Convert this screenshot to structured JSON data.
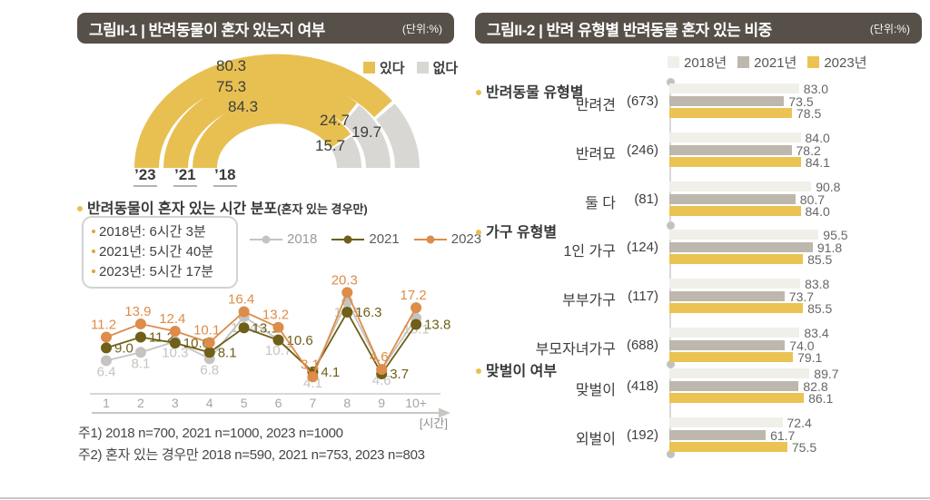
{
  "left_panel": {
    "header": {
      "title": "그림II-1 | 반려동물이 혼자 있는지 여부",
      "unit": "(단위:%)"
    },
    "section_title": "반려동물이 혼자 있는 시간 분포",
    "section_title_note": "(혼자 있는 경우만)",
    "avg_lines": [
      "2018년: 6시간 3분",
      "2021년: 5시간 40분",
      "2023년: 5시간 17분"
    ],
    "footnotes": [
      "주1) 2018 n=700, 2021 n=1000, 2023 n=1000",
      "주2) 혼자 있는 경우만 2018 n=590, 2021 n=753, 2023 n=803"
    ]
  },
  "right_panel": {
    "header": {
      "title": "그림II-2 | 반려 유형별 반려동물 혼자 있는 비중",
      "unit": "(단위:%)"
    }
  },
  "chart_data": [
    {
      "type": "donut-semicircle",
      "legend": [
        "있다",
        "없다"
      ],
      "colors": {
        "yes": "#e8c052",
        "no": "#d8d7d4"
      },
      "rings": [
        {
          "year": "’23",
          "yes": 80.3,
          "no": 19.7
        },
        {
          "year": "’21",
          "yes": 75.3,
          "no": 24.7
        },
        {
          "year": "’18",
          "yes": 84.3,
          "no": 15.7
        }
      ]
    },
    {
      "type": "line",
      "x": [
        "1",
        "2",
        "3",
        "4",
        "5",
        "6",
        "7",
        "8",
        "9",
        "10+"
      ],
      "xlabel": "[시간]",
      "ylim": [
        0,
        24
      ],
      "legend_position": "top-right",
      "series": [
        {
          "name": "2018",
          "color": "#c5c4c2",
          "values": [
            6.4,
            8.1,
            10.3,
            6.8,
            15.4,
            10.7,
            4.1,
            18.5,
            4.6,
            15.1
          ]
        },
        {
          "name": "2021",
          "color": "#6f5f17",
          "values": [
            9.0,
            11.2,
            10.0,
            8.1,
            13.1,
            10.6,
            4.1,
            16.3,
            3.7,
            13.8
          ]
        },
        {
          "name": "2023",
          "color": "#dd8c49",
          "values": [
            11.2,
            13.9,
            12.4,
            10.1,
            16.4,
            13.2,
            3.1,
            20.3,
            4.6,
            17.2
          ]
        }
      ]
    },
    {
      "type": "bar-horizontal-grouped",
      "legend": [
        "2018년",
        "2021년",
        "2023년"
      ],
      "colors": [
        "#f0efea",
        "#bdb7ad",
        "#eac353"
      ],
      "xmax": 100,
      "groups": [
        {
          "section": "반려동물 유형별",
          "rows": [
            {
              "label": "반려견",
              "n": "(673)",
              "values": [
                83.0,
                73.5,
                78.5
              ]
            },
            {
              "label": "반려묘",
              "n": "(246)",
              "values": [
                84.0,
                78.2,
                84.1
              ]
            },
            {
              "label": "둘 다",
              "n": "(81)",
              "values": [
                90.8,
                80.7,
                84.0
              ]
            }
          ]
        },
        {
          "section": "가구 유형별",
          "rows": [
            {
              "label": "1인 가구",
              "n": "(124)",
              "values": [
                95.5,
                91.8,
                85.5
              ]
            },
            {
              "label": "부부가구",
              "n": "(117)",
              "values": [
                83.8,
                73.7,
                85.5
              ]
            },
            {
              "label": "부모자녀가구",
              "n": "(688)",
              "values": [
                83.4,
                74.0,
                79.1
              ]
            }
          ]
        },
        {
          "section": "맞벌이 여부",
          "rows": [
            {
              "label": "맞벌이",
              "n": "(418)",
              "values": [
                89.7,
                82.8,
                86.1
              ]
            },
            {
              "label": "외벌이",
              "n": "(192)",
              "values": [
                72.4,
                61.7,
                75.5
              ]
            }
          ]
        }
      ]
    }
  ]
}
